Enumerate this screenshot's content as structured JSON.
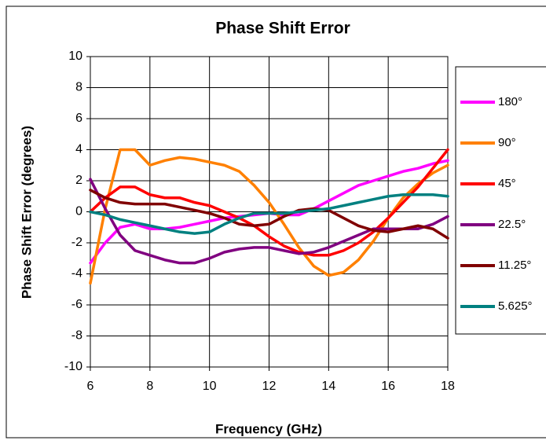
{
  "chart_data": {
    "type": "line",
    "title": "Phase Shift Error",
    "x_label": "Frequency (GHz)",
    "y_label": "Phase Shift Error (degrees)",
    "x": [
      6,
      6.5,
      7,
      7.5,
      8,
      8.5,
      9,
      9.5,
      10,
      10.5,
      11,
      11.5,
      12,
      12.5,
      13,
      13.5,
      14,
      14.5,
      15,
      15.5,
      16,
      16.5,
      17,
      17.5,
      18
    ],
    "series": [
      {
        "name": "180°",
        "color": "#ff00ff",
        "values": [
          -3.3,
          -2.0,
          -1.0,
          -0.8,
          -1.1,
          -1.1,
          -1.0,
          -0.8,
          -0.6,
          -0.4,
          -0.3,
          -0.2,
          -0.1,
          -0.2,
          -0.2,
          0.2,
          0.7,
          1.2,
          1.7,
          2.0,
          2.3,
          2.6,
          2.8,
          3.1,
          3.3
        ]
      },
      {
        "name": "90°",
        "color": "#ff8000",
        "values": [
          -4.6,
          0.2,
          4.0,
          4.0,
          3.0,
          3.3,
          3.5,
          3.4,
          3.2,
          3.0,
          2.6,
          1.7,
          0.6,
          -0.8,
          -2.3,
          -3.5,
          -4.1,
          -3.9,
          -3.1,
          -1.9,
          -0.4,
          0.9,
          1.8,
          2.5,
          3.0
        ]
      },
      {
        "name": "45°",
        "color": "#ff0000",
        "values": [
          0.0,
          0.9,
          1.6,
          1.6,
          1.1,
          0.9,
          0.9,
          0.6,
          0.4,
          0.0,
          -0.4,
          -0.9,
          -1.6,
          -2.2,
          -2.6,
          -2.8,
          -2.8,
          -2.5,
          -2.0,
          -1.3,
          -0.4,
          0.6,
          1.6,
          2.8,
          4.0
        ]
      },
      {
        "name": "22.5°",
        "color": "#800080",
        "values": [
          2.1,
          0.2,
          -1.5,
          -2.5,
          -2.8,
          -3.1,
          -3.3,
          -3.3,
          -3.0,
          -2.6,
          -2.4,
          -2.3,
          -2.3,
          -2.5,
          -2.7,
          -2.6,
          -2.3,
          -1.9,
          -1.5,
          -1.1,
          -1.1,
          -1.1,
          -1.1,
          -0.8,
          -0.3
        ]
      },
      {
        "name": "11.25°",
        "color": "#800000",
        "values": [
          1.4,
          0.9,
          0.6,
          0.5,
          0.5,
          0.5,
          0.3,
          0.1,
          -0.1,
          -0.4,
          -0.8,
          -0.9,
          -0.8,
          -0.3,
          0.1,
          0.2,
          0.1,
          -0.4,
          -0.9,
          -1.2,
          -1.3,
          -1.1,
          -0.9,
          -1.1,
          -1.7
        ]
      },
      {
        "name": "5.625°",
        "color": "#008080",
        "values": [
          0.0,
          -0.2,
          -0.5,
          -0.7,
          -0.9,
          -1.1,
          -1.3,
          -1.4,
          -1.3,
          -0.8,
          -0.4,
          -0.1,
          -0.1,
          -0.1,
          0.0,
          0.1,
          0.2,
          0.4,
          0.6,
          0.8,
          1.0,
          1.1,
          1.1,
          1.1,
          1.0
        ]
      }
    ],
    "xlim": [
      6,
      18
    ],
    "xticks": [
      6,
      8,
      10,
      12,
      14,
      16,
      18
    ],
    "ylim": [
      -10,
      10
    ],
    "yticks": [
      -10,
      -8,
      -6,
      -4,
      -2,
      0,
      2,
      4,
      6,
      8,
      10
    ],
    "grid": true,
    "legend": "right"
  }
}
